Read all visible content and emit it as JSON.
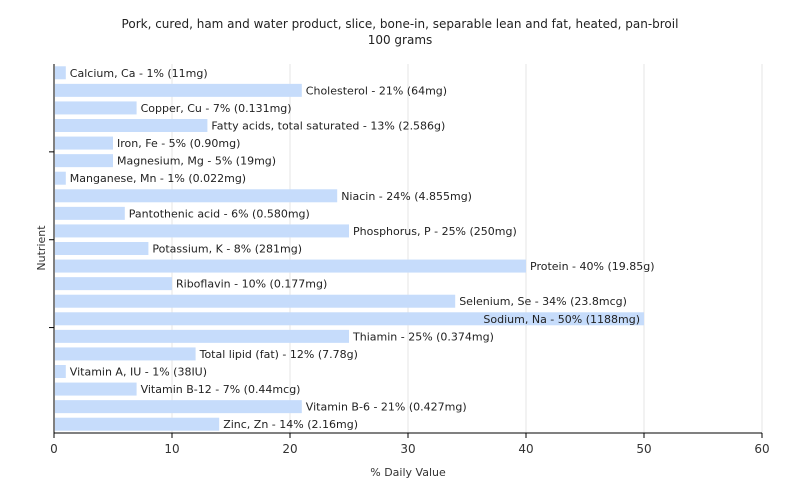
{
  "chart_data": {
    "type": "bar",
    "orientation": "horizontal",
    "title": "Pork, cured, ham and water product, slice, bone-in, separable lean and fat, heated, pan-broil",
    "subtitle": "100 grams",
    "xlabel": "% Daily Value",
    "ylabel": "Nutrient",
    "xlim": [
      0,
      60
    ],
    "xticks": [
      0,
      10,
      20,
      30,
      40,
      50,
      60
    ],
    "grid": true,
    "bar_color": "#c6dcfb",
    "categories": [
      "Calcium, Ca",
      "Cholesterol",
      "Copper, Cu",
      "Fatty acids, total saturated",
      "Iron, Fe",
      "Magnesium, Mg",
      "Manganese, Mn",
      "Niacin",
      "Pantothenic acid",
      "Phosphorus, P",
      "Potassium, K",
      "Protein",
      "Riboflavin",
      "Selenium, Se",
      "Sodium, Na",
      "Thiamin",
      "Total lipid (fat)",
      "Vitamin A, IU",
      "Vitamin B-12",
      "Vitamin B-6",
      "Zinc, Zn"
    ],
    "values": [
      1,
      21,
      7,
      13,
      5,
      5,
      1,
      24,
      6,
      25,
      8,
      40,
      10,
      34,
      50,
      25,
      12,
      1,
      7,
      21,
      14
    ],
    "labels": [
      "Calcium, Ca - 1% (11mg)",
      "Cholesterol - 21% (64mg)",
      "Copper, Cu - 7% (0.131mg)",
      "Fatty acids, total saturated - 13% (2.586g)",
      "Iron, Fe - 5% (0.90mg)",
      "Magnesium, Mg - 5% (19mg)",
      "Manganese, Mn - 1% (0.022mg)",
      "Niacin - 24% (4.855mg)",
      "Pantothenic acid - 6% (0.580mg)",
      "Phosphorus, P - 25% (250mg)",
      "Potassium, K - 8% (281mg)",
      "Protein - 40% (19.85g)",
      "Riboflavin - 10% (0.177mg)",
      "Selenium, Se - 34% (23.8mcg)",
      "Sodium, Na - 50% (1188mg)",
      "Thiamin - 25% (0.374mg)",
      "Total lipid (fat) - 12% (7.78g)",
      "Vitamin A, IU - 1% (38IU)",
      "Vitamin B-12 - 7% (0.44mcg)",
      "Vitamin B-6 - 21% (0.427mg)",
      "Zinc, Zn - 14% (2.16mg)"
    ]
  }
}
